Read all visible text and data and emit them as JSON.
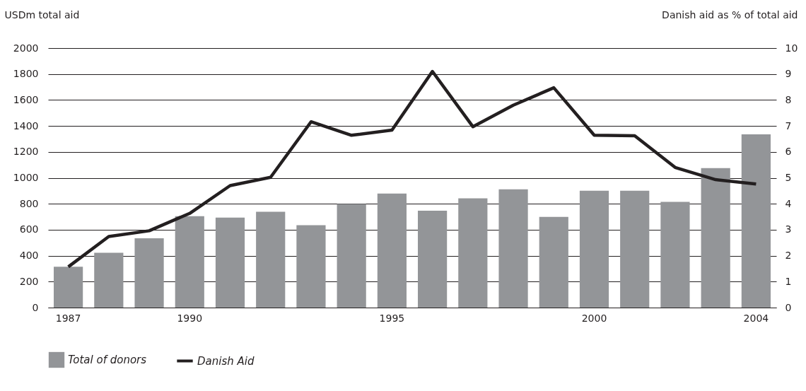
{
  "chart_data": {
    "type": "bar",
    "categories": [
      "1987",
      null,
      null,
      "1990",
      null,
      null,
      null,
      null,
      "1995",
      null,
      null,
      null,
      null,
      "2000",
      null,
      null,
      null,
      "2004"
    ],
    "series": [
      {
        "name": "Total of donors",
        "color": "#939598",
        "values": [
          315,
          423,
          534,
          704,
          693,
          739,
          635,
          799,
          879,
          746,
          842,
          911,
          699,
          900,
          900,
          815,
          1075,
          1335
        ]
      },
      {
        "name": "Danish Aid",
        "type": "line",
        "axis": "y2",
        "color": "#231f20",
        "values": [
          1.57,
          2.74,
          2.96,
          3.63,
          4.7,
          5.02,
          7.16,
          6.64,
          6.84,
          9.1,
          6.97,
          7.8,
          8.47,
          6.64,
          6.62,
          5.4,
          4.93,
          4.76
        ]
      }
    ],
    "ylabel": "USDm total aid",
    "y2label": "Danish aid as % of total aid",
    "ylim": [
      0,
      2000
    ],
    "yticks": [
      0,
      200,
      400,
      600,
      800,
      1000,
      1200,
      1400,
      1600,
      1800,
      2000
    ],
    "y2lim": [
      0,
      10
    ],
    "y2ticks": [
      0,
      1,
      2,
      3,
      4,
      5,
      6,
      7,
      8,
      9,
      10
    ],
    "grid": "y",
    "legend": "bottom left"
  }
}
